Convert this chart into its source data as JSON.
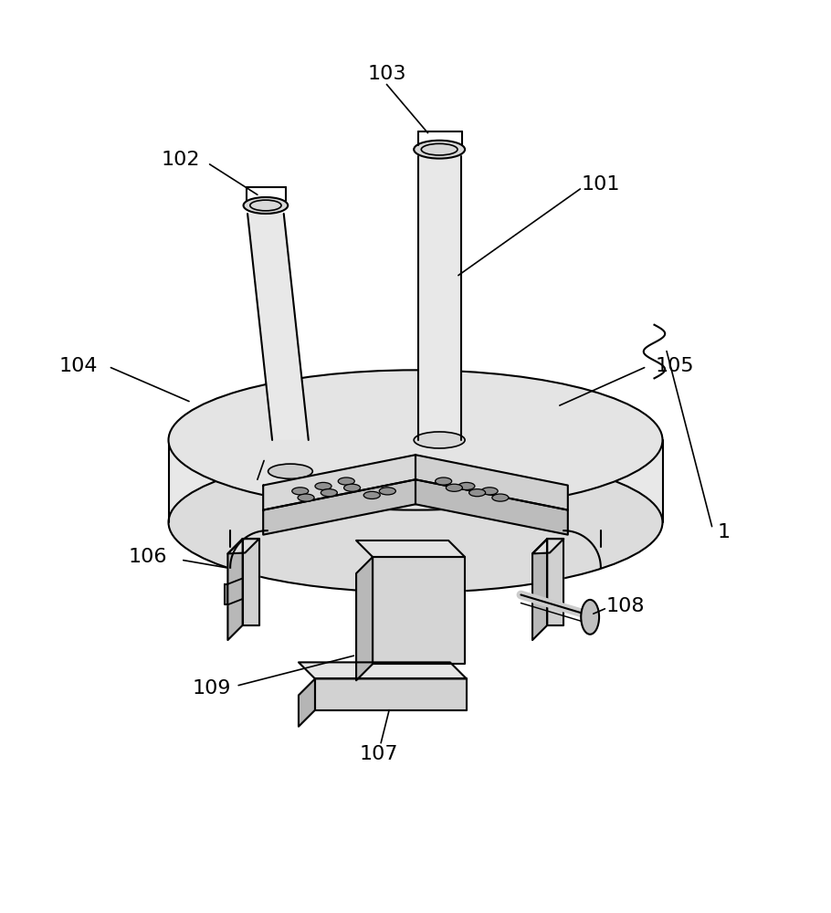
{
  "bg_color": "#ffffff",
  "line_color": "#000000",
  "line_width": 1.5,
  "label_fontsize": 16,
  "figure_width": 9.1,
  "figure_height": 10.0
}
